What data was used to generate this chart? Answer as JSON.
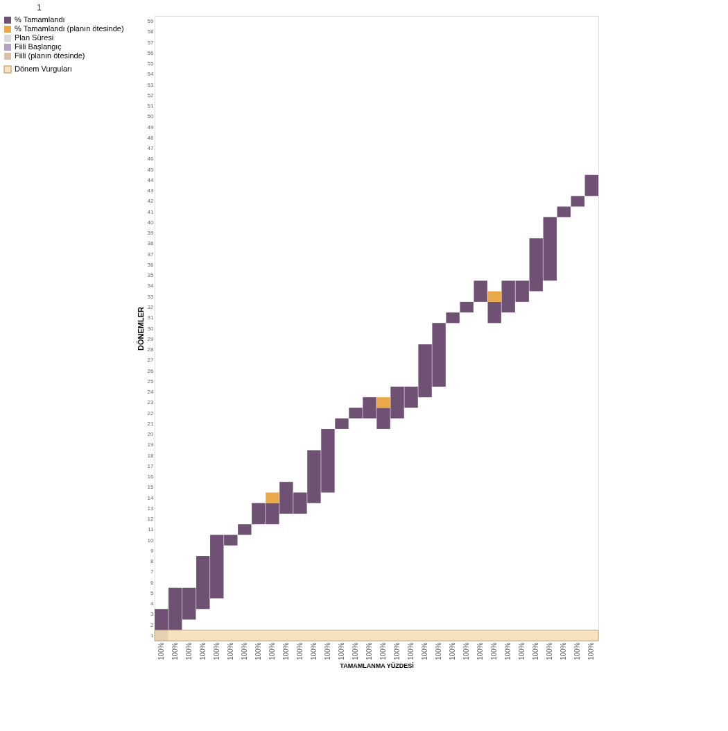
{
  "chart_data": {
    "type": "bar",
    "xlabel": "TAMAMLANMA YÜZDESİ",
    "ylabel": "DÖNEMLER",
    "categories": [
      "100%",
      "100%",
      "100%",
      "100%",
      "100%",
      "100%",
      "100%",
      "100%",
      "100%",
      "100%",
      "100%",
      "100%",
      "100%",
      "100%",
      "100%",
      "100%",
      "100%",
      "100%",
      "100%",
      "100%",
      "100%",
      "100%",
      "100%",
      "100%",
      "100%",
      "100%",
      "100%",
      "100%",
      "100%",
      "100%",
      "100%",
      "100%"
    ],
    "series": [
      {
        "name": "% Tamamlandı",
        "color": "#6f5273",
        "base": [
          0.5,
          1.5,
          2.5,
          3.5,
          4.5,
          9.5,
          10.5,
          11.5,
          11.5,
          12.5,
          12.5,
          13.5,
          14.5,
          20.5,
          21.5,
          21.5,
          20.5,
          21.5,
          22.5,
          23.5,
          24.5,
          30.5,
          31.5,
          32.5,
          30.5,
          31.5,
          32.5,
          33.5,
          34.5,
          40.5,
          41.5,
          42.5
        ],
        "values": [
          3,
          4,
          3,
          5,
          6,
          1,
          1,
          2,
          2,
          3,
          2,
          5,
          6,
          1,
          1,
          2,
          2,
          3,
          2,
          5,
          6,
          1,
          1,
          2,
          2,
          3,
          2,
          5,
          6,
          1,
          1,
          2
        ]
      },
      {
        "name": "% Tamamlandı (planın ötesinde)",
        "color": "#e9a94a",
        "base": [
          null,
          null,
          null,
          null,
          null,
          null,
          null,
          null,
          13.5,
          null,
          null,
          null,
          null,
          null,
          null,
          null,
          22.5,
          null,
          null,
          null,
          null,
          null,
          null,
          null,
          32.5,
          null,
          null,
          null,
          null,
          null,
          null,
          null
        ],
        "values": [
          null,
          null,
          null,
          null,
          null,
          null,
          null,
          null,
          1,
          null,
          null,
          null,
          null,
          null,
          null,
          null,
          1,
          null,
          null,
          null,
          null,
          null,
          null,
          null,
          1,
          null,
          null,
          null,
          null,
          null,
          null,
          null
        ]
      },
      {
        "name": "Plan Süresi",
        "color": "#d9d9d9",
        "values": [
          null,
          null,
          null,
          null,
          null,
          null,
          null,
          null,
          null,
          null,
          null,
          null,
          null,
          null,
          null,
          null,
          null,
          null,
          null,
          null,
          null,
          null,
          null,
          null,
          null,
          null,
          null,
          null,
          null,
          null,
          null,
          null
        ]
      },
      {
        "name": "Fiili Başlangıç",
        "color": "#b3a2c0",
        "values": [
          null,
          null,
          null,
          null,
          null,
          null,
          null,
          null,
          null,
          null,
          null,
          null,
          null,
          null,
          null,
          null,
          null,
          null,
          null,
          null,
          null,
          null,
          null,
          null,
          null,
          null,
          null,
          null,
          null,
          null,
          null,
          null
        ]
      },
      {
        "name": "Fiili (planın ötesinde)",
        "color": "#d9c1a8",
        "values": [
          null,
          null,
          null,
          null,
          null,
          null,
          null,
          null,
          null,
          null,
          null,
          null,
          null,
          null,
          null,
          null,
          null,
          null,
          null,
          null,
          null,
          null,
          null,
          null,
          null,
          null,
          null,
          null,
          null,
          null,
          null,
          null
        ]
      }
    ],
    "ylim": [
      0.5,
      59.5
    ],
    "yticks": [
      1,
      2,
      3,
      4,
      5,
      6,
      7,
      8,
      9,
      10,
      11,
      12,
      13,
      14,
      15,
      16,
      17,
      18,
      19,
      20,
      21,
      22,
      23,
      24,
      25,
      26,
      27,
      28,
      29,
      30,
      31,
      32,
      33,
      34,
      35,
      36,
      37,
      38,
      39,
      40,
      41,
      42,
      43,
      44,
      45,
      46,
      47,
      48,
      49,
      50,
      51,
      52,
      53,
      54,
      55,
      56,
      57,
      58,
      59
    ],
    "bands": [
      {
        "axis": "y",
        "from": 0.5,
        "to": 1.5,
        "label": "Dönem Vurguları",
        "color": "#f6dfb9"
      }
    ],
    "annotations": [
      "1"
    ],
    "legend": "left"
  }
}
